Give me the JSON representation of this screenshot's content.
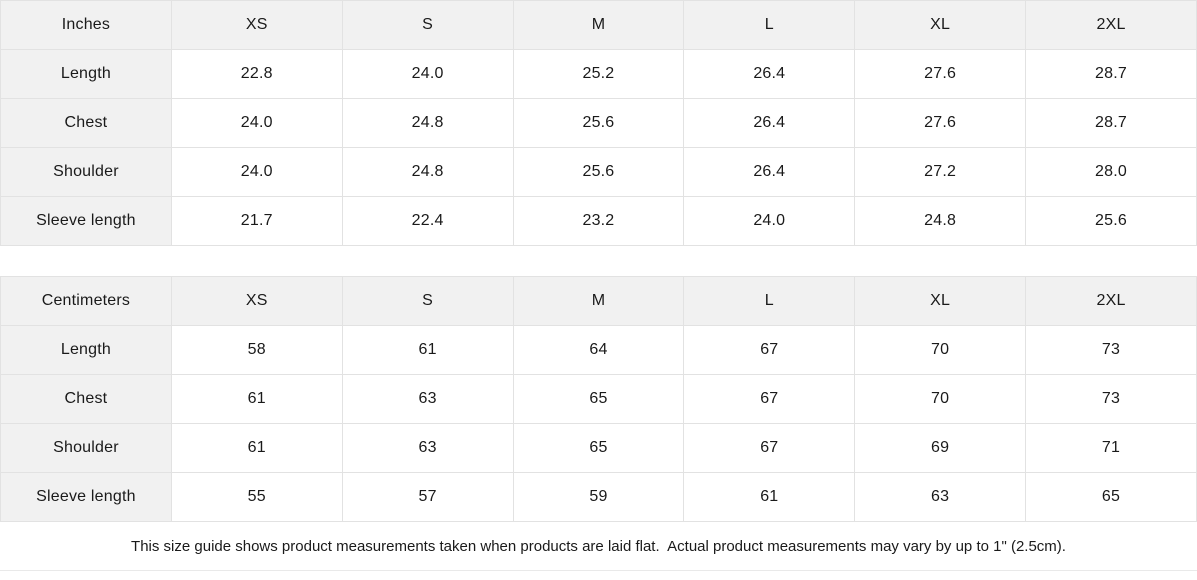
{
  "inches": {
    "unit_label": "Inches",
    "sizes": [
      "XS",
      "S",
      "M",
      "L",
      "XL",
      "2XL"
    ],
    "rows": [
      {
        "label": "Length",
        "values": [
          "22.8",
          "24.0",
          "25.2",
          "26.4",
          "27.6",
          "28.7"
        ]
      },
      {
        "label": "Chest",
        "values": [
          "24.0",
          "24.8",
          "25.6",
          "26.4",
          "27.6",
          "28.7"
        ]
      },
      {
        "label": "Shoulder",
        "values": [
          "24.0",
          "24.8",
          "25.6",
          "26.4",
          "27.2",
          "28.0"
        ]
      },
      {
        "label": "Sleeve length",
        "values": [
          "21.7",
          "22.4",
          "23.2",
          "24.0",
          "24.8",
          "25.6"
        ]
      }
    ]
  },
  "centimeters": {
    "unit_label": "Centimeters",
    "sizes": [
      "XS",
      "S",
      "M",
      "L",
      "XL",
      "2XL"
    ],
    "rows": [
      {
        "label": "Length",
        "values": [
          "58",
          "61",
          "64",
          "67",
          "70",
          "73"
        ]
      },
      {
        "label": "Chest",
        "values": [
          "61",
          "63",
          "65",
          "67",
          "70",
          "73"
        ]
      },
      {
        "label": "Shoulder",
        "values": [
          "61",
          "63",
          "65",
          "67",
          "69",
          "71"
        ]
      },
      {
        "label": "Sleeve length",
        "values": [
          "55",
          "57",
          "59",
          "61",
          "63",
          "65"
        ]
      }
    ]
  },
  "footer": {
    "note": "This size guide shows product measurements taken when products are laid flat.  Actual product measurements may vary by up to 1\" (2.5cm)."
  },
  "colors": {
    "header_bg": "#f1f1f1",
    "border": "#e2e2e2",
    "text": "#1a1a1a",
    "footer_border": "#e9e9e9"
  }
}
